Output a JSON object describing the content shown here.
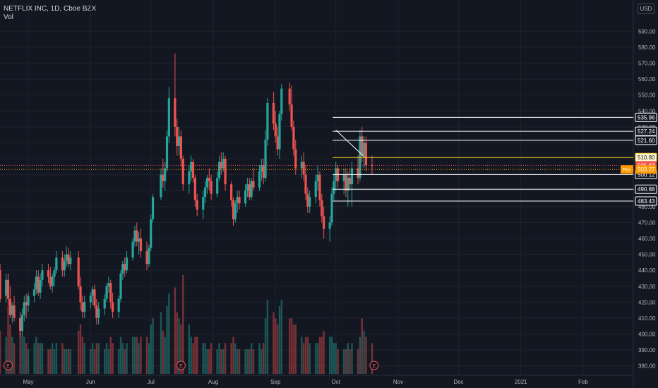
{
  "legend": {
    "symbol": "NETFLIX INC, 1D, Cboe BZX",
    "indicator": "Vol"
  },
  "currency": "USD",
  "colors": {
    "background": "#131722",
    "grid": "#1e222d",
    "up": "#26a69a",
    "down": "#ef5350",
    "axis_text": "#b2b5be",
    "level_line": "#ffffff",
    "price_line": "#ef5350",
    "highlight": "#f0c419",
    "premarket": "#ff9800"
  },
  "chart_data": {
    "type": "candlestick",
    "y_range": [
      375,
      595
    ],
    "y_ticks": [
      380,
      390,
      400,
      410,
      420,
      430,
      440,
      450,
      460,
      470,
      480,
      490,
      500,
      510,
      520,
      530,
      540,
      550,
      560,
      570,
      580,
      590
    ],
    "x_labels": [
      {
        "label": "May",
        "date": "2020-05-01"
      },
      {
        "label": "Jun",
        "date": "2020-06-01"
      },
      {
        "label": "Jul",
        "date": "2020-07-01"
      },
      {
        "label": "Aug",
        "date": "2020-08-01"
      },
      {
        "label": "Sep",
        "date": "2020-09-01"
      },
      {
        "label": "Oct",
        "date": "2020-10-01"
      },
      {
        "label": "Nov",
        "date": "2020-11-01"
      },
      {
        "label": "Dec",
        "date": "2020-12-01"
      },
      {
        "label": "2021",
        "date": "2021-01-01"
      },
      {
        "label": "Feb",
        "date": "2021-02-01"
      }
    ],
    "earnings_markers": [
      {
        "label": "E",
        "date": "2020-04-21"
      },
      {
        "label": "E",
        "date": "2020-07-16"
      },
      {
        "label": "E",
        "date": "2020-10-20"
      }
    ],
    "last_price": {
      "label": "505.87",
      "value": 505.87
    },
    "premarket_price": {
      "tag": "Pre",
      "label": "503.27",
      "value": 503.27
    },
    "highlight_level": {
      "label": "510.80",
      "value": 510.8
    },
    "horizontal_levels": [
      {
        "label": "535.96",
        "value": 535.96
      },
      {
        "label": "527.24",
        "value": 527.24
      },
      {
        "label": "521.60",
        "value": 521.6
      },
      {
        "label": "500.12",
        "value": 500.12
      },
      {
        "label": "490.88",
        "value": 490.88
      },
      {
        "label": "483.43",
        "value": 483.43
      }
    ],
    "trend_line": {
      "from": {
        "date": "2020-10-01",
        "price": 528
      },
      "to": {
        "date": "2020-10-09",
        "price": 511
      }
    },
    "candles": [
      {
        "d": "2020-04-16",
        "o": 432,
        "h": 447,
        "l": 428,
        "c": 440,
        "v": 8
      },
      {
        "d": "2020-04-17",
        "o": 440,
        "h": 444,
        "l": 420,
        "c": 422,
        "v": 7
      },
      {
        "d": "2020-04-20",
        "o": 424,
        "h": 438,
        "l": 420,
        "c": 434,
        "v": 6
      },
      {
        "d": "2020-04-21",
        "o": 434,
        "h": 438,
        "l": 418,
        "c": 422,
        "v": 11
      },
      {
        "d": "2020-04-22",
        "o": 422,
        "h": 430,
        "l": 410,
        "c": 412,
        "v": 8
      },
      {
        "d": "2020-04-23",
        "o": 412,
        "h": 420,
        "l": 407,
        "c": 418,
        "v": 6
      },
      {
        "d": "2020-04-24",
        "o": 418,
        "h": 424,
        "l": 408,
        "c": 410,
        "v": 5
      },
      {
        "d": "2020-04-27",
        "o": 410,
        "h": 414,
        "l": 398,
        "c": 402,
        "v": 7
      },
      {
        "d": "2020-04-28",
        "o": 402,
        "h": 416,
        "l": 398,
        "c": 412,
        "v": 6
      },
      {
        "d": "2020-04-29",
        "o": 412,
        "h": 424,
        "l": 408,
        "c": 420,
        "v": 6
      },
      {
        "d": "2020-04-30",
        "o": 420,
        "h": 425,
        "l": 410,
        "c": 418,
        "v": 5
      },
      {
        "d": "2020-05-01",
        "o": 418,
        "h": 426,
        "l": 414,
        "c": 424,
        "v": 4
      },
      {
        "d": "2020-05-04",
        "o": 424,
        "h": 432,
        "l": 420,
        "c": 428,
        "v": 5
      },
      {
        "d": "2020-05-05",
        "o": 428,
        "h": 440,
        "l": 425,
        "c": 436,
        "v": 6
      },
      {
        "d": "2020-05-06",
        "o": 436,
        "h": 440,
        "l": 424,
        "c": 426,
        "v": 5
      },
      {
        "d": "2020-05-07",
        "o": 426,
        "h": 438,
        "l": 422,
        "c": 434,
        "v": 5
      },
      {
        "d": "2020-05-08",
        "o": 434,
        "h": 444,
        "l": 430,
        "c": 440,
        "v": 5
      },
      {
        "d": "2020-05-11",
        "o": 440,
        "h": 444,
        "l": 432,
        "c": 436,
        "v": 4
      },
      {
        "d": "2020-05-12",
        "o": 436,
        "h": 442,
        "l": 428,
        "c": 430,
        "v": 4
      },
      {
        "d": "2020-05-13",
        "o": 430,
        "h": 438,
        "l": 426,
        "c": 436,
        "v": 5
      },
      {
        "d": "2020-05-14",
        "o": 436,
        "h": 442,
        "l": 430,
        "c": 440,
        "v": 4
      },
      {
        "d": "2020-05-15",
        "o": 440,
        "h": 452,
        "l": 438,
        "c": 448,
        "v": 5
      },
      {
        "d": "2020-05-18",
        "o": 448,
        "h": 452,
        "l": 436,
        "c": 440,
        "v": 5
      },
      {
        "d": "2020-05-19",
        "o": 440,
        "h": 450,
        "l": 436,
        "c": 446,
        "v": 4
      },
      {
        "d": "2020-05-20",
        "o": 446,
        "h": 455,
        "l": 442,
        "c": 450,
        "v": 4
      },
      {
        "d": "2020-05-21",
        "o": 450,
        "h": 454,
        "l": 442,
        "c": 444,
        "v": 4
      },
      {
        "d": "2020-05-22",
        "o": 444,
        "h": 452,
        "l": 440,
        "c": 448,
        "v": 4
      },
      {
        "d": "2020-05-26",
        "o": 448,
        "h": 452,
        "l": 428,
        "c": 430,
        "v": 7
      },
      {
        "d": "2020-05-27",
        "o": 430,
        "h": 436,
        "l": 415,
        "c": 420,
        "v": 8
      },
      {
        "d": "2020-05-28",
        "o": 420,
        "h": 424,
        "l": 410,
        "c": 414,
        "v": 6
      },
      {
        "d": "2020-05-29",
        "o": 414,
        "h": 424,
        "l": 410,
        "c": 420,
        "v": 5
      },
      {
        "d": "2020-06-01",
        "o": 420,
        "h": 426,
        "l": 416,
        "c": 424,
        "v": 4
      },
      {
        "d": "2020-06-02",
        "o": 424,
        "h": 430,
        "l": 418,
        "c": 428,
        "v": 5
      },
      {
        "d": "2020-06-03",
        "o": 428,
        "h": 431,
        "l": 416,
        "c": 418,
        "v": 4
      },
      {
        "d": "2020-06-04",
        "o": 418,
        "h": 422,
        "l": 406,
        "c": 410,
        "v": 5
      },
      {
        "d": "2020-06-05",
        "o": 410,
        "h": 420,
        "l": 406,
        "c": 416,
        "v": 5
      },
      {
        "d": "2020-06-08",
        "o": 416,
        "h": 425,
        "l": 412,
        "c": 422,
        "v": 4
      },
      {
        "d": "2020-06-09",
        "o": 422,
        "h": 432,
        "l": 420,
        "c": 430,
        "v": 5
      },
      {
        "d": "2020-06-10",
        "o": 430,
        "h": 436,
        "l": 426,
        "c": 432,
        "v": 4
      },
      {
        "d": "2020-06-11",
        "o": 432,
        "h": 434,
        "l": 416,
        "c": 420,
        "v": 6
      },
      {
        "d": "2020-06-12",
        "o": 420,
        "h": 426,
        "l": 410,
        "c": 414,
        "v": 5
      },
      {
        "d": "2020-06-15",
        "o": 414,
        "h": 424,
        "l": 410,
        "c": 422,
        "v": 4
      },
      {
        "d": "2020-06-16",
        "o": 422,
        "h": 440,
        "l": 420,
        "c": 438,
        "v": 6
      },
      {
        "d": "2020-06-17",
        "o": 438,
        "h": 446,
        "l": 434,
        "c": 444,
        "v": 5
      },
      {
        "d": "2020-06-18",
        "o": 444,
        "h": 448,
        "l": 436,
        "c": 440,
        "v": 4
      },
      {
        "d": "2020-06-19",
        "o": 440,
        "h": 452,
        "l": 438,
        "c": 448,
        "v": 5
      },
      {
        "d": "2020-06-22",
        "o": 448,
        "h": 460,
        "l": 446,
        "c": 458,
        "v": 6
      },
      {
        "d": "2020-06-23",
        "o": 458,
        "h": 468,
        "l": 455,
        "c": 465,
        "v": 6
      },
      {
        "d": "2020-06-24",
        "o": 465,
        "h": 470,
        "l": 455,
        "c": 458,
        "v": 6
      },
      {
        "d": "2020-06-25",
        "o": 458,
        "h": 464,
        "l": 450,
        "c": 460,
        "v": 5
      },
      {
        "d": "2020-06-26",
        "o": 460,
        "h": 466,
        "l": 448,
        "c": 452,
        "v": 6
      },
      {
        "d": "2020-06-29",
        "o": 452,
        "h": 458,
        "l": 440,
        "c": 444,
        "v": 6
      },
      {
        "d": "2020-06-30",
        "o": 444,
        "h": 456,
        "l": 442,
        "c": 454,
        "v": 5
      },
      {
        "d": "2020-07-01",
        "o": 454,
        "h": 475,
        "l": 452,
        "c": 472,
        "v": 8
      },
      {
        "d": "2020-07-02",
        "o": 472,
        "h": 488,
        "l": 470,
        "c": 486,
        "v": 9
      },
      {
        "d": "2020-07-06",
        "o": 486,
        "h": 504,
        "l": 484,
        "c": 500,
        "v": 10
      },
      {
        "d": "2020-07-07",
        "o": 500,
        "h": 510,
        "l": 492,
        "c": 496,
        "v": 7
      },
      {
        "d": "2020-07-08",
        "o": 496,
        "h": 508,
        "l": 490,
        "c": 504,
        "v": 6
      },
      {
        "d": "2020-07-09",
        "o": 504,
        "h": 528,
        "l": 502,
        "c": 524,
        "v": 11
      },
      {
        "d": "2020-07-10",
        "o": 524,
        "h": 555,
        "l": 520,
        "c": 548,
        "v": 13
      },
      {
        "d": "2020-07-13",
        "o": 548,
        "h": 576,
        "l": 524,
        "c": 530,
        "v": 14
      },
      {
        "d": "2020-07-14",
        "o": 530,
        "h": 535,
        "l": 512,
        "c": 518,
        "v": 10
      },
      {
        "d": "2020-07-15",
        "o": 518,
        "h": 530,
        "l": 512,
        "c": 524,
        "v": 9
      },
      {
        "d": "2020-07-16",
        "o": 524,
        "h": 528,
        "l": 505,
        "c": 510,
        "v": 8
      },
      {
        "d": "2020-07-17",
        "o": 510,
        "h": 512,
        "l": 490,
        "c": 494,
        "v": 16
      },
      {
        "d": "2020-07-20",
        "o": 494,
        "h": 506,
        "l": 488,
        "c": 502,
        "v": 8
      },
      {
        "d": "2020-07-21",
        "o": 502,
        "h": 512,
        "l": 496,
        "c": 508,
        "v": 6
      },
      {
        "d": "2020-07-22",
        "o": 508,
        "h": 510,
        "l": 495,
        "c": 498,
        "v": 5
      },
      {
        "d": "2020-07-23",
        "o": 498,
        "h": 500,
        "l": 480,
        "c": 484,
        "v": 6
      },
      {
        "d": "2020-07-24",
        "o": 484,
        "h": 488,
        "l": 474,
        "c": 478,
        "v": 6
      },
      {
        "d": "2020-07-27",
        "o": 478,
        "h": 490,
        "l": 472,
        "c": 486,
        "v": 5
      },
      {
        "d": "2020-07-28",
        "o": 486,
        "h": 496,
        "l": 482,
        "c": 492,
        "v": 5
      },
      {
        "d": "2020-07-29",
        "o": 492,
        "h": 500,
        "l": 488,
        "c": 498,
        "v": 4
      },
      {
        "d": "2020-07-30",
        "o": 498,
        "h": 504,
        "l": 490,
        "c": 496,
        "v": 4
      },
      {
        "d": "2020-07-31",
        "o": 496,
        "h": 500,
        "l": 484,
        "c": 488,
        "v": 5
      },
      {
        "d": "2020-08-03",
        "o": 488,
        "h": 502,
        "l": 486,
        "c": 498,
        "v": 4
      },
      {
        "d": "2020-08-04",
        "o": 498,
        "h": 512,
        "l": 496,
        "c": 508,
        "v": 5
      },
      {
        "d": "2020-08-05",
        "o": 508,
        "h": 514,
        "l": 500,
        "c": 504,
        "v": 4
      },
      {
        "d": "2020-08-06",
        "o": 504,
        "h": 514,
        "l": 502,
        "c": 510,
        "v": 4
      },
      {
        "d": "2020-08-07",
        "o": 510,
        "h": 512,
        "l": 490,
        "c": 494,
        "v": 5
      },
      {
        "d": "2020-08-10",
        "o": 494,
        "h": 496,
        "l": 480,
        "c": 484,
        "v": 5
      },
      {
        "d": "2020-08-11",
        "o": 484,
        "h": 486,
        "l": 468,
        "c": 472,
        "v": 6
      },
      {
        "d": "2020-08-12",
        "o": 472,
        "h": 484,
        "l": 470,
        "c": 482,
        "v": 5
      },
      {
        "d": "2020-08-13",
        "o": 482,
        "h": 490,
        "l": 476,
        "c": 486,
        "v": 4
      },
      {
        "d": "2020-08-14",
        "o": 486,
        "h": 490,
        "l": 478,
        "c": 482,
        "v": 4
      },
      {
        "d": "2020-08-17",
        "o": 482,
        "h": 494,
        "l": 480,
        "c": 490,
        "v": 4
      },
      {
        "d": "2020-08-18",
        "o": 490,
        "h": 498,
        "l": 486,
        "c": 494,
        "v": 4
      },
      {
        "d": "2020-08-19",
        "o": 494,
        "h": 498,
        "l": 484,
        "c": 486,
        "v": 4
      },
      {
        "d": "2020-08-20",
        "o": 486,
        "h": 498,
        "l": 484,
        "c": 496,
        "v": 5
      },
      {
        "d": "2020-08-21",
        "o": 496,
        "h": 504,
        "l": 490,
        "c": 492,
        "v": 4
      },
      {
        "d": "2020-08-24",
        "o": 492,
        "h": 506,
        "l": 490,
        "c": 502,
        "v": 5
      },
      {
        "d": "2020-08-25",
        "o": 502,
        "h": 510,
        "l": 496,
        "c": 506,
        "v": 4
      },
      {
        "d": "2020-08-26",
        "o": 506,
        "h": 510,
        "l": 494,
        "c": 498,
        "v": 5
      },
      {
        "d": "2020-08-27",
        "o": 498,
        "h": 528,
        "l": 496,
        "c": 522,
        "v": 9
      },
      {
        "d": "2020-08-28",
        "o": 522,
        "h": 548,
        "l": 518,
        "c": 545,
        "v": 12
      },
      {
        "d": "2020-08-31",
        "o": 545,
        "h": 552,
        "l": 528,
        "c": 532,
        "v": 10
      },
      {
        "d": "2020-09-01",
        "o": 532,
        "h": 540,
        "l": 520,
        "c": 524,
        "v": 9
      },
      {
        "d": "2020-09-02",
        "o": 524,
        "h": 530,
        "l": 512,
        "c": 516,
        "v": 8
      },
      {
        "d": "2020-09-03",
        "o": 516,
        "h": 540,
        "l": 510,
        "c": 538,
        "v": 11
      },
      {
        "d": "2020-09-04",
        "o": 538,
        "h": 557,
        "l": 534,
        "c": 554,
        "v": 12
      },
      {
        "d": "2020-09-08",
        "o": 554,
        "h": 558,
        "l": 540,
        "c": 544,
        "v": 9
      },
      {
        "d": "2020-09-09",
        "o": 544,
        "h": 556,
        "l": 528,
        "c": 530,
        "v": 9
      },
      {
        "d": "2020-09-10",
        "o": 530,
        "h": 534,
        "l": 512,
        "c": 516,
        "v": 8
      },
      {
        "d": "2020-09-11",
        "o": 516,
        "h": 522,
        "l": 500,
        "c": 504,
        "v": 8
      },
      {
        "d": "2020-09-14",
        "o": 504,
        "h": 512,
        "l": 498,
        "c": 508,
        "v": 6
      },
      {
        "d": "2020-09-15",
        "o": 508,
        "h": 514,
        "l": 496,
        "c": 500,
        "v": 5
      },
      {
        "d": "2020-09-16",
        "o": 500,
        "h": 506,
        "l": 484,
        "c": 488,
        "v": 6
      },
      {
        "d": "2020-09-17",
        "o": 488,
        "h": 492,
        "l": 476,
        "c": 480,
        "v": 6
      },
      {
        "d": "2020-09-18",
        "o": 480,
        "h": 490,
        "l": 476,
        "c": 486,
        "v": 5
      },
      {
        "d": "2020-09-21",
        "o": 486,
        "h": 500,
        "l": 482,
        "c": 496,
        "v": 5
      },
      {
        "d": "2020-09-22",
        "o": 496,
        "h": 506,
        "l": 490,
        "c": 500,
        "v": 5
      },
      {
        "d": "2020-09-23",
        "o": 500,
        "h": 502,
        "l": 480,
        "c": 484,
        "v": 6
      },
      {
        "d": "2020-09-24",
        "o": 484,
        "h": 488,
        "l": 470,
        "c": 474,
        "v": 6
      },
      {
        "d": "2020-09-25",
        "o": 474,
        "h": 480,
        "l": 460,
        "c": 466,
        "v": 7
      },
      {
        "d": "2020-09-28",
        "o": 466,
        "h": 474,
        "l": 458,
        "c": 470,
        "v": 6
      },
      {
        "d": "2020-09-29",
        "o": 470,
        "h": 492,
        "l": 468,
        "c": 488,
        "v": 6
      },
      {
        "d": "2020-09-30",
        "o": 488,
        "h": 500,
        "l": 484,
        "c": 496,
        "v": 5
      },
      {
        "d": "2020-10-01",
        "o": 496,
        "h": 508,
        "l": 490,
        "c": 504,
        "v": 5
      },
      {
        "d": "2020-10-02",
        "o": 504,
        "h": 506,
        "l": 492,
        "c": 496,
        "v": 4
      },
      {
        "d": "2020-10-05",
        "o": 496,
        "h": 504,
        "l": 488,
        "c": 500,
        "v": 4
      },
      {
        "d": "2020-10-06",
        "o": 500,
        "h": 504,
        "l": 486,
        "c": 490,
        "v": 4
      },
      {
        "d": "2020-10-07",
        "o": 490,
        "h": 502,
        "l": 480,
        "c": 498,
        "v": 5
      },
      {
        "d": "2020-10-08",
        "o": 498,
        "h": 504,
        "l": 490,
        "c": 494,
        "v": 4
      },
      {
        "d": "2020-10-09",
        "o": 494,
        "h": 508,
        "l": 480,
        "c": 504,
        "v": 5
      },
      {
        "d": "2020-10-12",
        "o": 504,
        "h": 512,
        "l": 494,
        "c": 498,
        "v": 4
      },
      {
        "d": "2020-10-13",
        "o": 498,
        "h": 528,
        "l": 496,
        "c": 524,
        "v": 6
      },
      {
        "d": "2020-10-14",
        "o": 524,
        "h": 530,
        "l": 508,
        "c": 512,
        "v": 9
      },
      {
        "d": "2020-10-15",
        "o": 512,
        "h": 524,
        "l": 504,
        "c": 520,
        "v": 7
      },
      {
        "d": "2020-10-16",
        "o": 520,
        "h": 524,
        "l": 502,
        "c": 506,
        "v": 6
      },
      {
        "d": "2020-10-19",
        "o": 506,
        "h": 512,
        "l": 500,
        "c": 505.87,
        "v": 5
      }
    ]
  }
}
